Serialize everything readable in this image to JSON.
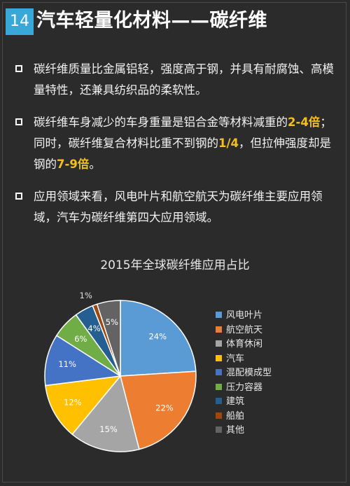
{
  "header": {
    "number": "14",
    "title": "汽车轻量化材料——碳纤维"
  },
  "bullets": [
    {
      "segments": [
        {
          "text": "碳纤维质量比金属铝轻，强度高于钢，并具有耐腐蚀、高模量特性，还兼具纺织品的柔软性。",
          "hl": false
        }
      ]
    },
    {
      "segments": [
        {
          "text": "碳纤维车身减少的车身重量是铝合金等材料减重的",
          "hl": false
        },
        {
          "text": "2-4倍",
          "hl": true
        },
        {
          "text": "；同时，碳纤维复合材料比重不到钢的",
          "hl": false
        },
        {
          "text": "1/4",
          "hl": true
        },
        {
          "text": "，但拉伸强度却是钢的",
          "hl": false
        },
        {
          "text": "7-9倍",
          "hl": true
        },
        {
          "text": "。",
          "hl": false
        }
      ]
    },
    {
      "segments": [
        {
          "text": "应用领域来看，风电叶片和航空航天为碳纤维主要应用领域，汽车为碳纤维第四大应用领域。",
          "hl": false
        }
      ]
    }
  ],
  "chart_data": {
    "type": "pie",
    "title": "2015年全球碳纤维应用占比",
    "categories": [
      "风电叶片",
      "航空航天",
      "体育休闲",
      "汽车",
      "混配模成型",
      "压力容器",
      "建筑",
      "船舶",
      "其他"
    ],
    "values": [
      24,
      22,
      15,
      12,
      11,
      6,
      4,
      1,
      5
    ],
    "labels": [
      "24%",
      "22%",
      "15%",
      "12%",
      "11%",
      "6%",
      "4%",
      "1%",
      "5%"
    ],
    "colors": [
      "#5b9bd5",
      "#ed7d31",
      "#a5a5a5",
      "#ffc000",
      "#4472c4",
      "#70ad47",
      "#255e91",
      "#9e480e",
      "#636363"
    ],
    "start_angle_deg": 0,
    "direction": "clockwise",
    "legend_position": "right"
  }
}
